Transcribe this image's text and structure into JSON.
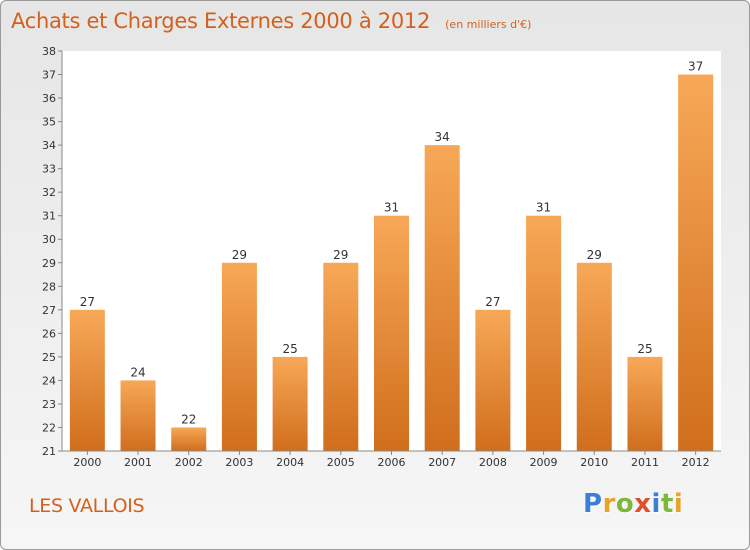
{
  "title": "Achats et Charges Externes 2000 à 2012",
  "subtitle": "(en milliers d'€)",
  "place": "LES VALLOIS",
  "logo": {
    "letters": [
      {
        "char": "P",
        "color": "#3a7fd0"
      },
      {
        "char": "r",
        "color": "#e8a22a"
      },
      {
        "char": "o",
        "color": "#7cb83a"
      },
      {
        "char": "x",
        "color": "#e04f2b"
      },
      {
        "char": "i",
        "color": "#3a7fd0"
      },
      {
        "char": "t",
        "color": "#7cb83a"
      },
      {
        "char": "i",
        "color": "#e8a22a"
      }
    ]
  },
  "chart_data": {
    "type": "bar",
    "title": "Achats et Charges Externes 2000 à 2012",
    "subtitle": "(en milliers d'€)",
    "categories": [
      "2000",
      "2001",
      "2002",
      "2003",
      "2004",
      "2005",
      "2006",
      "2007",
      "2008",
      "2009",
      "2010",
      "2011",
      "2012"
    ],
    "values": [
      27,
      24,
      22,
      29,
      25,
      29,
      31,
      34,
      27,
      31,
      29,
      25,
      37
    ],
    "ylim": [
      21,
      38
    ],
    "yticks": [
      21,
      22,
      23,
      24,
      25,
      26,
      27,
      28,
      29,
      30,
      31,
      32,
      33,
      34,
      35,
      36,
      37,
      38
    ],
    "grid": false,
    "bar_color_top": "#f7a857",
    "bar_color_bottom": "#d06e1c",
    "data_labels": true
  }
}
